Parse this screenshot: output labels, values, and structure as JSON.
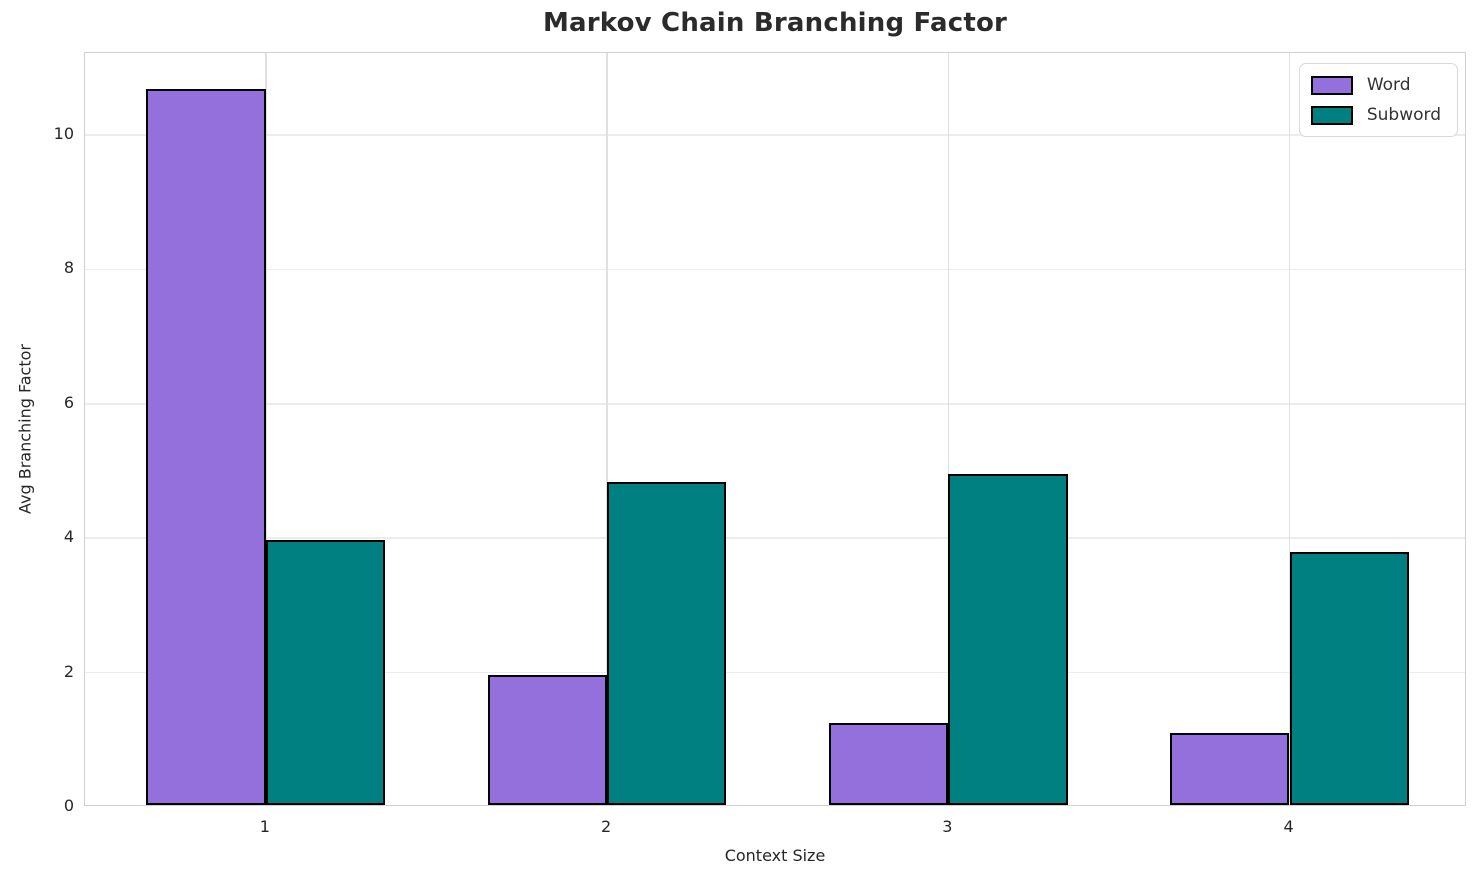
{
  "chart_data": {
    "type": "bar",
    "title": "Markov Chain Branching Factor",
    "xlabel": "Context Size",
    "ylabel": "Avg Branching Factor",
    "categories": [
      1,
      2,
      3,
      4
    ],
    "series": [
      {
        "name": "Word",
        "color": "#9370DB",
        "values": [
          10.65,
          1.93,
          1.22,
          1.07
        ]
      },
      {
        "name": "Subword",
        "color": "#008080",
        "values": [
          3.95,
          4.81,
          4.92,
          3.76
        ]
      }
    ],
    "bar_width": 0.35,
    "bar_edge_color": "#000000",
    "xlim": [
      0.47,
      4.52
    ],
    "ylim": [
      0,
      11.22
    ],
    "yticks": [
      0,
      2,
      4,
      6,
      8,
      10
    ],
    "xticks": [
      1,
      2,
      3,
      4
    ],
    "grid": true,
    "grid_color": "#ececec",
    "spine_color": "#d0d0d0",
    "background_color": "#ffffff",
    "text_color": "#262626",
    "legend": {
      "position": "upper right",
      "entries": [
        "Word",
        "Subword"
      ]
    }
  }
}
